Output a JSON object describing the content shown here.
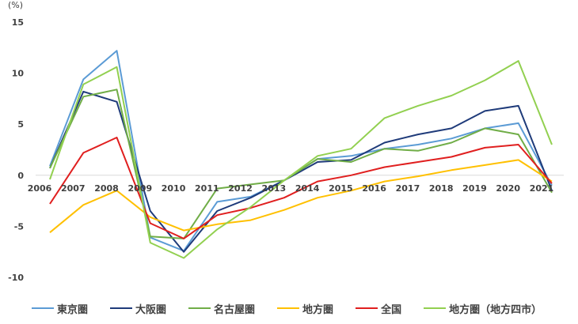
{
  "chart_data": {
    "type": "line",
    "unit_label": "(%)",
    "x": [
      "2006",
      "2007",
      "2008",
      "2009",
      "2010",
      "2011",
      "2012",
      "2013",
      "2014",
      "2015",
      "2016",
      "2017",
      "2018",
      "2019",
      "2020",
      "2021"
    ],
    "ylim": [
      -10,
      15
    ],
    "yticks": [
      "15",
      "10",
      "5",
      "0",
      "-5",
      "-10"
    ],
    "ytick_values": [
      15,
      10,
      5,
      0,
      -5,
      -10
    ],
    "grid": false,
    "legend_position": "bottom",
    "series": [
      {
        "name": "東京圏",
        "color": "#5b9bd5",
        "values": [
          0.9,
          9.4,
          12.2,
          -6.1,
          -7.4,
          -2.6,
          -2.1,
          -0.5,
          1.6,
          1.9,
          2.6,
          3.0,
          3.6,
          4.6,
          5.1,
          -1.0
        ]
      },
      {
        "name": "大阪圏",
        "color": "#1f3b7a",
        "values": [
          0.7,
          8.2,
          7.2,
          -3.5,
          -7.5,
          -3.5,
          -2.2,
          -0.5,
          1.3,
          1.5,
          3.2,
          4.0,
          4.6,
          6.3,
          6.8,
          -1.5
        ]
      },
      {
        "name": "名古屋圏",
        "color": "#70ad47",
        "values": [
          0.7,
          7.7,
          8.4,
          -6.0,
          -6.2,
          -1.3,
          -0.9,
          -0.5,
          1.6,
          1.3,
          2.6,
          2.4,
          3.2,
          4.6,
          4.0,
          -1.7
        ]
      },
      {
        "name": "地方圏",
        "color": "#ffc000",
        "values": [
          -5.6,
          -2.9,
          -1.5,
          -4.1,
          -5.4,
          -4.8,
          -4.4,
          -3.4,
          -2.2,
          -1.5,
          -0.6,
          -0.1,
          0.5,
          1.0,
          1.5,
          -0.6
        ]
      },
      {
        "name": "全国",
        "color": "#e01f1f",
        "values": [
          -2.8,
          2.2,
          3.7,
          -4.7,
          -6.2,
          -3.9,
          -3.2,
          -2.2,
          -0.6,
          0.0,
          0.8,
          1.3,
          1.8,
          2.7,
          3.0,
          -0.8
        ]
      },
      {
        "name": "地方圏（地方四市）",
        "color": "#92d050",
        "values": [
          -0.4,
          8.9,
          10.6,
          -6.6,
          -8.1,
          -5.3,
          -3.1,
          -0.5,
          1.9,
          2.6,
          5.6,
          6.8,
          7.8,
          9.3,
          11.2,
          3.0
        ]
      }
    ]
  }
}
